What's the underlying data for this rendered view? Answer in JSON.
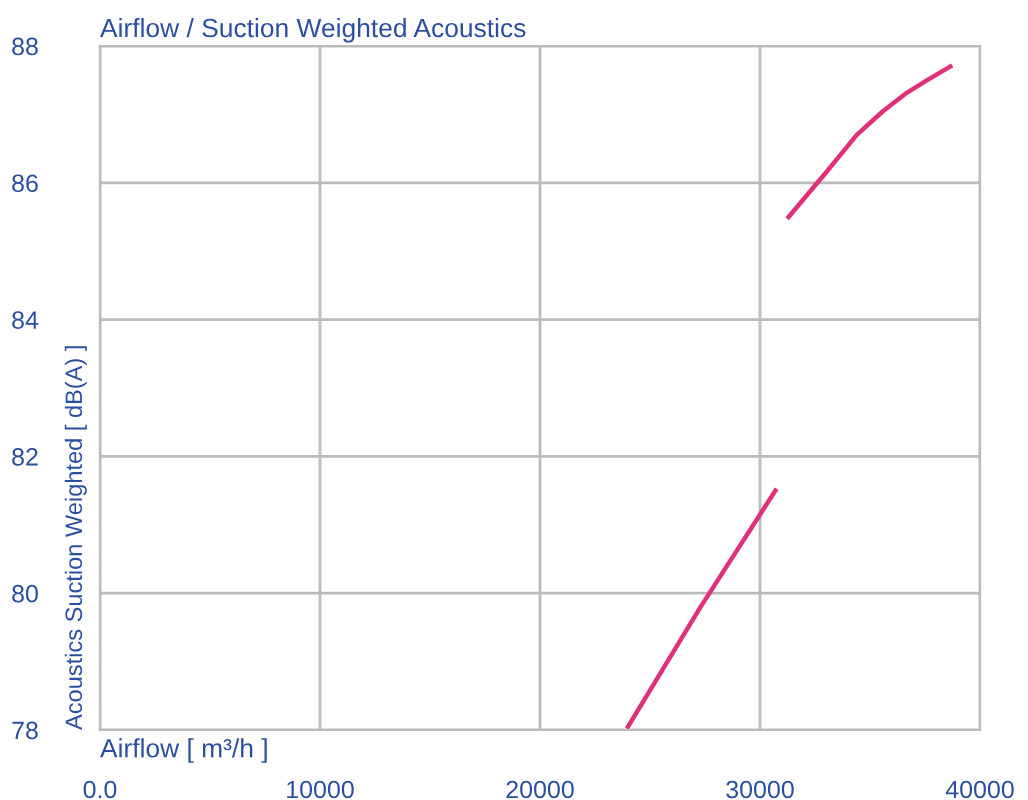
{
  "chart_data": {
    "type": "line",
    "title": "Airflow / Suction Weighted Acoustics",
    "xlabel": "Airflow [ m³/h ]",
    "ylabel": "Acoustics Suction Weighted [ dB(A) ]",
    "series": [
      {
        "color": "#e0307a",
        "x": [
          24000,
          27300,
          30700
        ],
        "values": [
          78.05,
          79.8,
          81.5
        ]
      },
      {
        "color": "#e0307a",
        "x": [
          31300,
          33000,
          34400,
          35600,
          36600,
          37600,
          38650
        ],
        "values": [
          85.5,
          86.15,
          86.7,
          87.05,
          87.3,
          87.5,
          87.7
        ]
      }
    ],
    "xlim": [
      0,
      40000
    ],
    "ylim": [
      78,
      88
    ],
    "xticks": [
      {
        "value": 0,
        "label": "0.0"
      },
      10000,
      20000,
      30000,
      40000
    ],
    "yticks": [
      78,
      80,
      82,
      84,
      86,
      88
    ],
    "grid": true,
    "marker": "none",
    "line_style": "solid"
  }
}
